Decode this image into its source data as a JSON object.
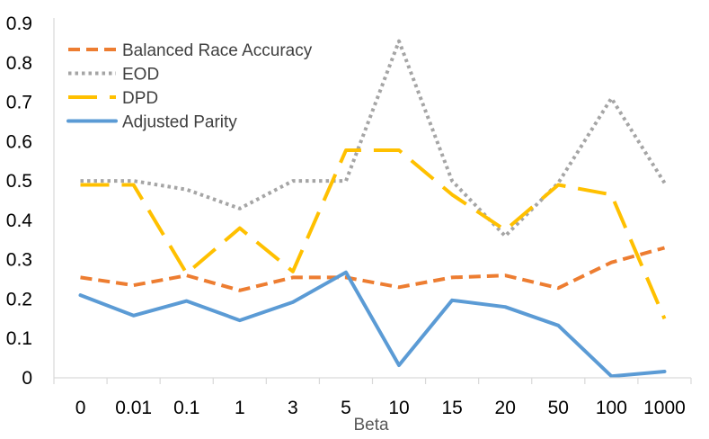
{
  "chart_data": {
    "type": "line",
    "title": "",
    "xlabel": "Beta",
    "ylabel": "",
    "categories": [
      "0",
      "0.01",
      "0.1",
      "1",
      "3",
      "5",
      "10",
      "15",
      "20",
      "50",
      "100",
      "1000"
    ],
    "ylim": [
      0,
      0.9
    ],
    "yticks": [
      "0",
      "0.1",
      "0.2",
      "0.3",
      "0.4",
      "0.5",
      "0.6",
      "0.7",
      "0.8",
      "0.9"
    ],
    "grid": false,
    "legend_position": "top-left",
    "series": [
      {
        "name": "Balanced Race Accuracy",
        "color": "#ED7D31",
        "dash": "dashed",
        "values": [
          0.255,
          0.235,
          0.26,
          0.222,
          0.255,
          0.255,
          0.23,
          0.255,
          0.26,
          0.228,
          0.293,
          0.33
        ]
      },
      {
        "name": "EOD",
        "color": "#A5A5A5",
        "dash": "dotted",
        "values": [
          0.5,
          0.5,
          0.478,
          0.43,
          0.5,
          0.5,
          0.855,
          0.5,
          0.36,
          0.495,
          0.71,
          0.495
        ]
      },
      {
        "name": "DPD",
        "color": "#FFC000",
        "dash": "long-dash",
        "values": [
          0.49,
          0.49,
          0.265,
          0.38,
          0.27,
          0.578,
          0.578,
          0.465,
          0.375,
          0.49,
          0.465,
          0.15
        ]
      },
      {
        "name": "Adjusted Parity",
        "color": "#5B9BD5",
        "dash": "solid",
        "values": [
          0.21,
          0.158,
          0.195,
          0.146,
          0.192,
          0.268,
          0.032,
          0.197,
          0.18,
          0.133,
          0.004,
          0.016
        ]
      }
    ]
  }
}
